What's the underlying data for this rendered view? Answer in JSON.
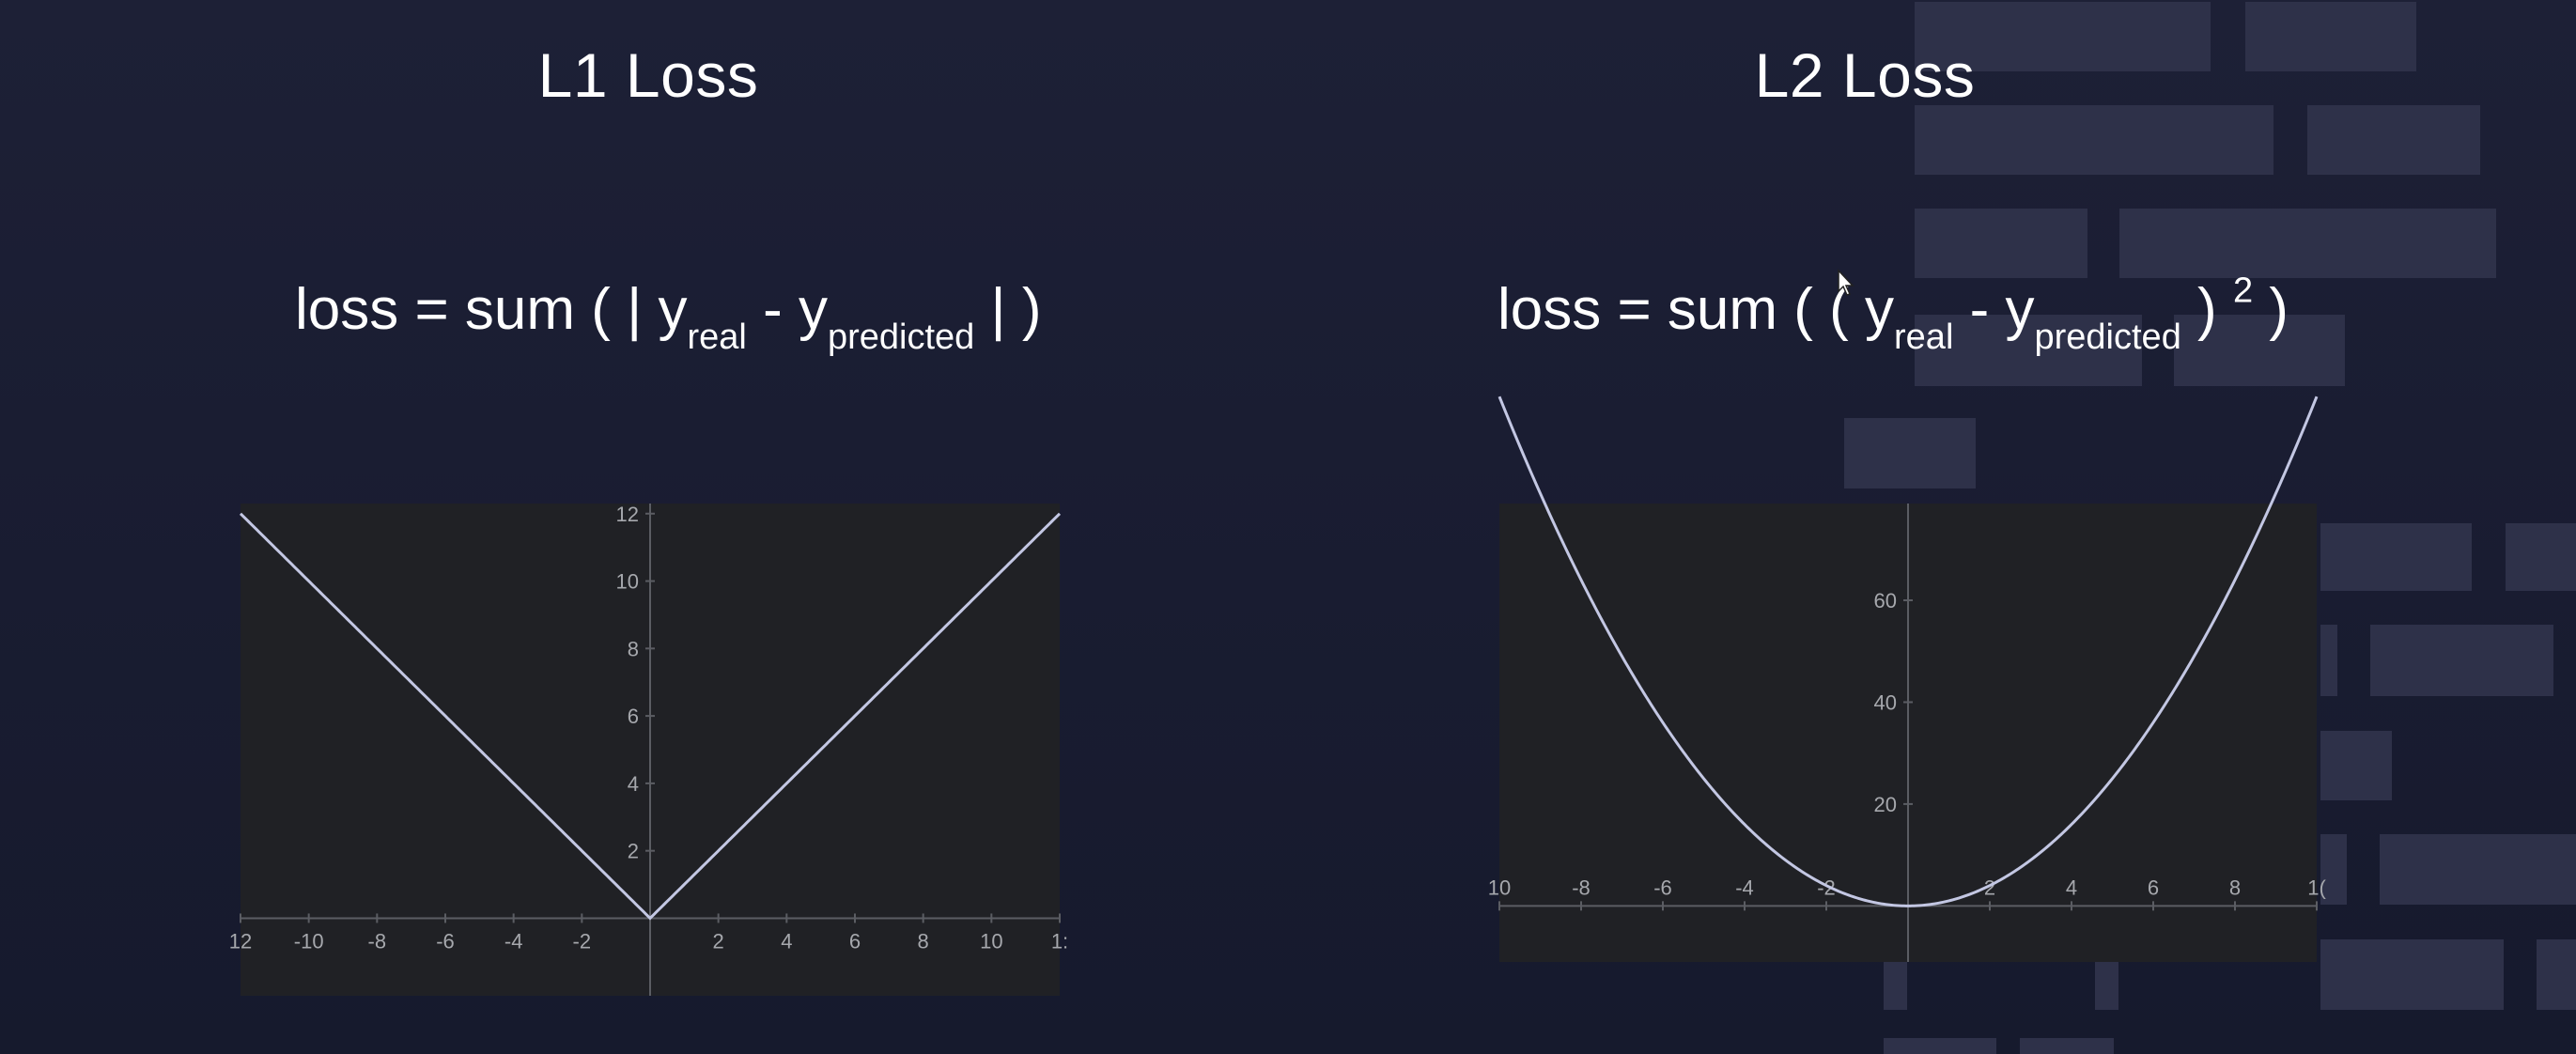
{
  "left": {
    "title": "L1 Loss",
    "formula": {
      "prefix": "loss = sum ( | y",
      "sub1": "real",
      "middle": " - y",
      "sub2": "predicted",
      "suffix": " | )"
    }
  },
  "right": {
    "title": "L2 Loss",
    "formula": {
      "prefix": "loss = sum ( ( y",
      "sub1": "real",
      "middle": " - y",
      "sub2": "predicted",
      "close": " ) ",
      "power": "2",
      "suffix": " )"
    }
  },
  "chart_data": [
    {
      "type": "line",
      "function": "abs(x)",
      "x": [
        -12,
        -10,
        -8,
        -6,
        -4,
        -2,
        0,
        2,
        4,
        6,
        8,
        10,
        12
      ],
      "y": [
        12,
        10,
        8,
        6,
        4,
        2,
        0,
        2,
        4,
        6,
        8,
        10,
        12
      ],
      "xlim": [
        -12,
        12
      ],
      "ylim": [
        -2.3,
        12.3
      ],
      "x_ticks": [
        "12",
        "-10",
        "-8",
        "-6",
        "-4",
        "-2",
        "2",
        "4",
        "6",
        "8",
        "10",
        "1:"
      ],
      "y_ticks": [
        "2",
        "4",
        "6",
        "8",
        "10",
        "12"
      ],
      "line_color": "#c3c7e3",
      "background": "#202125",
      "grid": false
    },
    {
      "type": "line",
      "function": "x^2",
      "x": [
        -10,
        -9,
        -8,
        -7,
        -6,
        -5,
        -4,
        -3,
        -2,
        -1,
        0,
        1,
        2,
        3,
        4,
        5,
        6,
        7,
        8,
        9,
        10
      ],
      "y": [
        100,
        81,
        64,
        49,
        36,
        25,
        16,
        9,
        4,
        1,
        0,
        1,
        4,
        9,
        16,
        25,
        36,
        49,
        64,
        81,
        100
      ],
      "xlim": [
        -10,
        10
      ],
      "ylim": [
        -11,
        79
      ],
      "x_ticks": [
        "10",
        "-8",
        "-6",
        "-4",
        "-2",
        "2",
        "4",
        "6",
        "8",
        "1("
      ],
      "y_ticks": [
        "20",
        "40",
        "60"
      ],
      "line_color": "#c3c7e3",
      "background": "#202125",
      "grid": false
    }
  ]
}
